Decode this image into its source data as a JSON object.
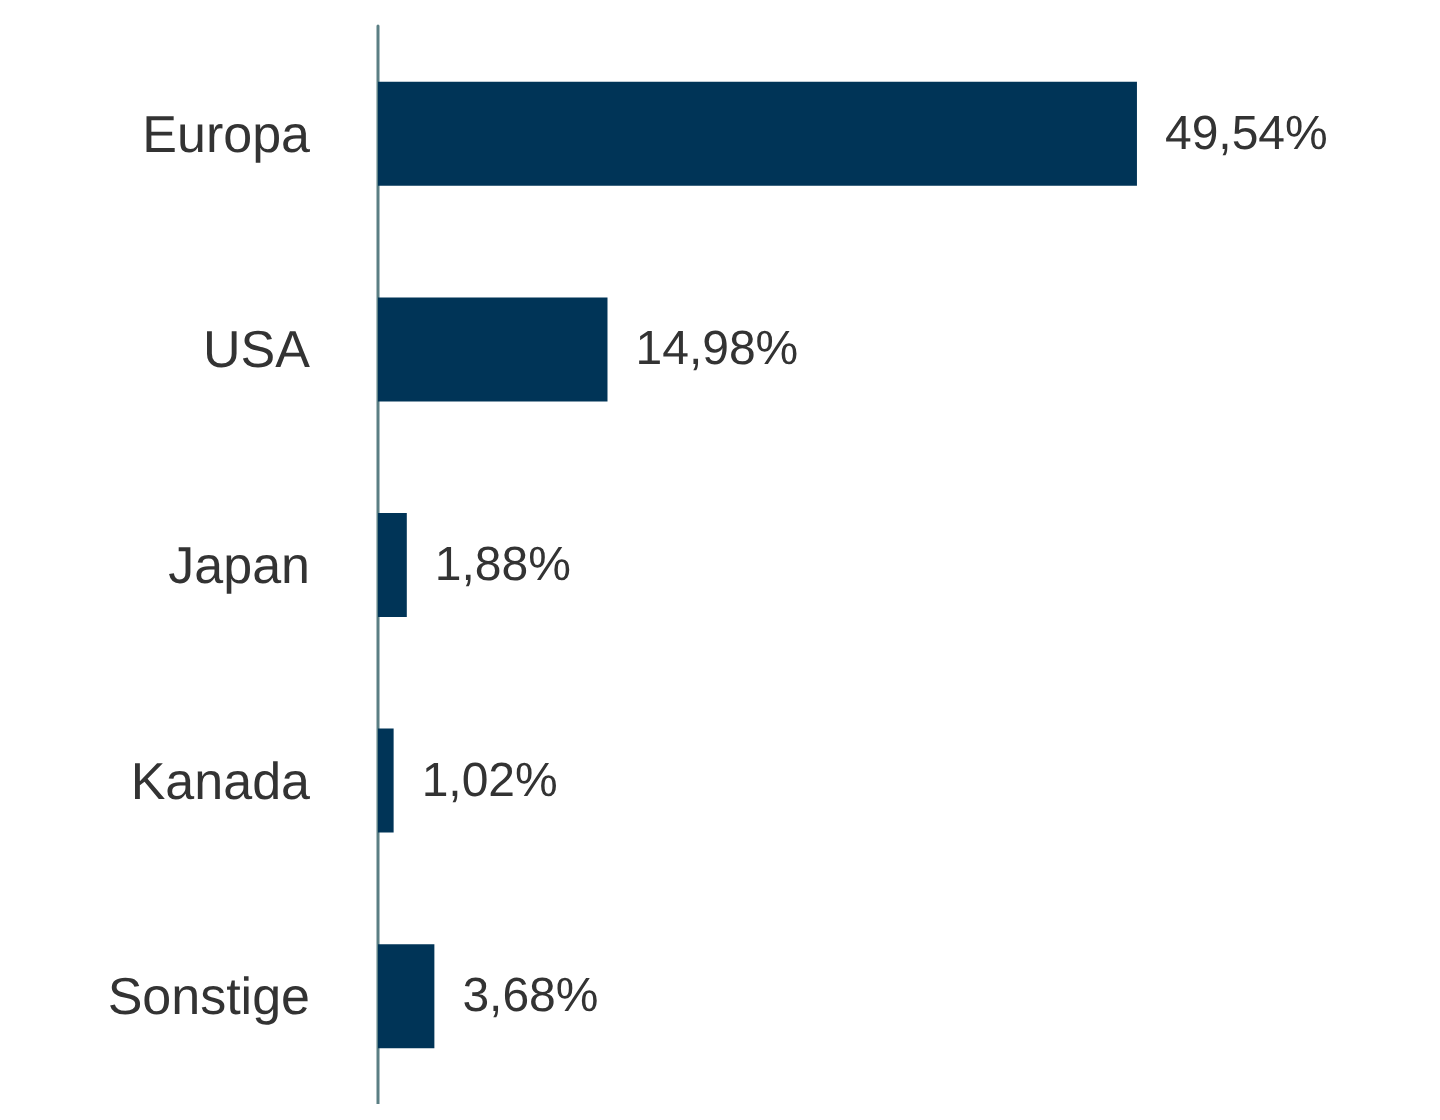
{
  "chart_data": {
    "type": "bar",
    "orientation": "horizontal",
    "categories": [
      "Europa",
      "USA",
      "Japan",
      "Kanada",
      "Sonstige"
    ],
    "values": [
      49.54,
      14.98,
      1.88,
      1.02,
      3.68
    ],
    "value_labels": [
      "49,54%",
      "14,98%",
      "1,88%",
      "1,02%",
      "3,68%"
    ],
    "color": "#003457",
    "grid": false
  }
}
